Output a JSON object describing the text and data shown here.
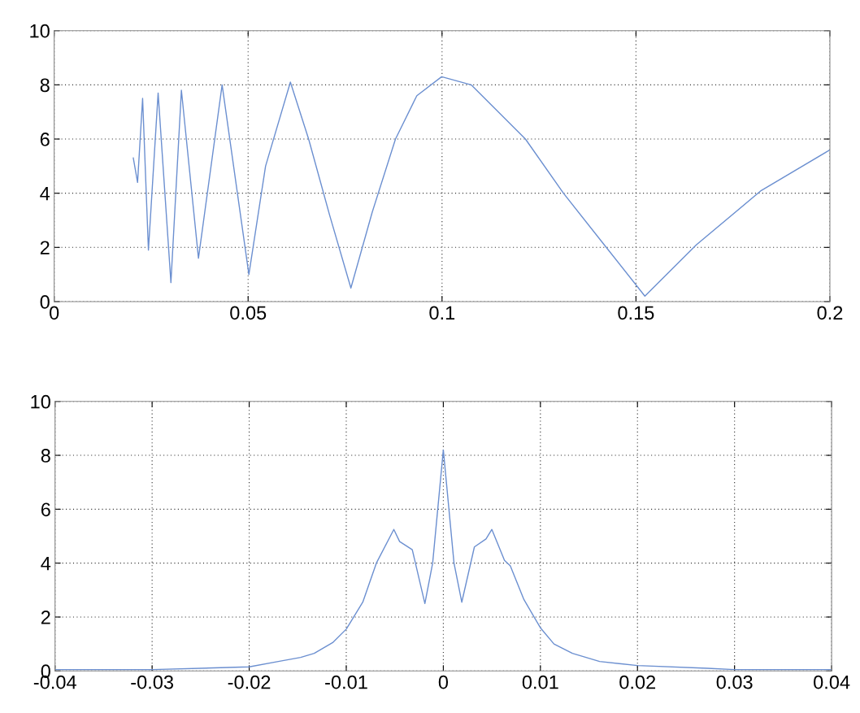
{
  "chart_data": [
    {
      "type": "line",
      "xlim": [
        0,
        0.2
      ],
      "ylim": [
        0,
        10
      ],
      "xticks": [
        0,
        0.05,
        0.1,
        0.15,
        0.2
      ],
      "yticks": [
        0,
        2,
        4,
        6,
        8,
        10
      ],
      "grid": true,
      "series": [
        {
          "color": "#6b8fd0",
          "x": [
            0.0204,
            0.0215,
            0.0228,
            0.0243,
            0.0268,
            0.0301,
            0.0328,
            0.0372,
            0.0433,
            0.0502,
            0.0545,
            0.0609,
            0.0656,
            0.071,
            0.0765,
            0.082,
            0.088,
            0.0935,
            0.0999,
            0.1075,
            0.1215,
            0.1313,
            0.1418,
            0.1523,
            0.1656,
            0.1823,
            0.2
          ],
          "values": [
            5.3,
            4.4,
            7.5,
            1.9,
            7.7,
            0.7,
            7.8,
            1.6,
            8.0,
            1.0,
            5.0,
            8.1,
            6.0,
            3.2,
            0.5,
            3.3,
            6.0,
            7.6,
            8.3,
            8.0,
            6.0,
            4.0,
            2.1,
            0.2,
            2.1,
            4.1,
            5.6
          ]
        }
      ]
    },
    {
      "type": "line",
      "xlim": [
        -0.04,
        0.04
      ],
      "ylim": [
        0,
        10
      ],
      "xticks": [
        -0.04,
        -0.03,
        -0.02,
        -0.01,
        0,
        0.01,
        0.02,
        0.03,
        0.04
      ],
      "yticks": [
        0,
        2,
        4,
        6,
        8,
        10
      ],
      "grid": true,
      "series": [
        {
          "color": "#6b8fd0",
          "x": [
            -0.04,
            -0.03,
            -0.02,
            -0.017,
            -0.0147,
            -0.0133,
            -0.0114,
            -0.01,
            -0.0083,
            -0.0069,
            -0.0051,
            -0.0045,
            -0.0032,
            -0.0019,
            -0.0011,
            0,
            0.0011,
            0.0019,
            0.0032,
            0.0044,
            0.005,
            0.0063,
            0.0069,
            0.0083,
            0.01,
            0.0114,
            0.0133,
            0.0161,
            0.02,
            0.0272,
            0.03,
            0.04
          ],
          "values": [
            0.05,
            0.05,
            0.15,
            0.35,
            0.5,
            0.65,
            1.05,
            1.55,
            2.55,
            4.0,
            5.25,
            4.8,
            4.5,
            2.5,
            4.0,
            8.2,
            4.0,
            2.55,
            4.6,
            4.9,
            5.25,
            4.1,
            3.9,
            2.65,
            1.6,
            1.0,
            0.65,
            0.35,
            0.2,
            0.1,
            0.05,
            0.05
          ]
        }
      ]
    }
  ]
}
